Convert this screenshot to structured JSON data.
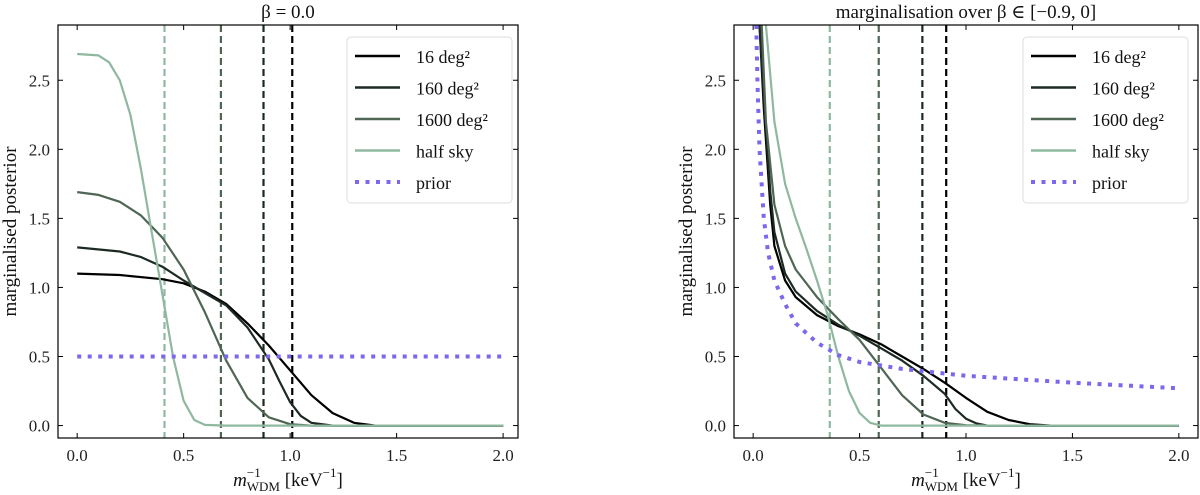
{
  "chart_data": [
    {
      "type": "line",
      "title": "β = 0.0",
      "xlabel": {
        "m": "m",
        "sub": "WDM",
        "sup": "−1",
        "unit": " [keV",
        "unit_sup": "−1",
        "close": "]"
      },
      "ylabel": "marginalised posterior",
      "xlim": [
        -0.09,
        2.07
      ],
      "ylim": [
        -0.09,
        2.9
      ],
      "xticks": [
        0.0,
        0.5,
        1.0,
        1.5,
        2.0
      ],
      "xtick_labels": [
        "0.0",
        "0.5",
        "1.0",
        "1.5",
        "2.0"
      ],
      "yticks": [
        0.0,
        0.5,
        1.0,
        1.5,
        2.0,
        2.5
      ],
      "ytick_labels": [
        "0.0",
        "0.5",
        "1.0",
        "1.5",
        "2.0",
        "2.5"
      ],
      "grid": false,
      "legend_position": "top-right",
      "series": [
        {
          "name": "16 deg²",
          "color": "#000000",
          "style": "solid",
          "x": [
            0,
            0.2,
            0.4,
            0.5,
            0.6,
            0.7,
            0.8,
            0.9,
            1.0,
            1.1,
            1.2,
            1.3,
            1.4,
            2.0
          ],
          "y": [
            1.1,
            1.09,
            1.06,
            1.03,
            0.97,
            0.88,
            0.74,
            0.58,
            0.4,
            0.22,
            0.09,
            0.02,
            0.0,
            0.0
          ]
        },
        {
          "name": "160 deg²",
          "color": "#1c2a22",
          "style": "solid",
          "x": [
            0,
            0.2,
            0.3,
            0.4,
            0.5,
            0.6,
            0.7,
            0.8,
            0.9,
            0.95,
            1.0,
            1.05,
            1.1,
            1.2,
            2.0
          ],
          "y": [
            1.29,
            1.26,
            1.22,
            1.15,
            1.05,
            0.96,
            0.87,
            0.71,
            0.48,
            0.32,
            0.17,
            0.07,
            0.02,
            0.0,
            0.0
          ]
        },
        {
          "name": "1600 deg²",
          "color": "#4f6655",
          "style": "solid",
          "x": [
            0,
            0.1,
            0.2,
            0.3,
            0.4,
            0.5,
            0.6,
            0.7,
            0.8,
            0.9,
            1.0,
            1.1,
            2.0
          ],
          "y": [
            1.69,
            1.67,
            1.62,
            1.52,
            1.36,
            1.13,
            0.82,
            0.47,
            0.2,
            0.06,
            0.01,
            0.0,
            0.0
          ]
        },
        {
          "name": "half sky",
          "color": "#8fb8a0",
          "style": "solid",
          "x": [
            0,
            0.1,
            0.15,
            0.2,
            0.25,
            0.3,
            0.35,
            0.4,
            0.45,
            0.5,
            0.55,
            0.6,
            0.7,
            2.0
          ],
          "y": [
            2.69,
            2.68,
            2.63,
            2.5,
            2.25,
            1.85,
            1.4,
            0.95,
            0.5,
            0.18,
            0.04,
            0.005,
            0.0,
            0.0
          ]
        },
        {
          "name": "prior",
          "color": "#7b68ee",
          "style": "dotted",
          "x": [
            0,
            2.0
          ],
          "y": [
            0.5,
            0.5
          ]
        }
      ],
      "vlines": [
        {
          "x": 0.41,
          "color": "#8fb8a0"
        },
        {
          "x": 0.675,
          "color": "#4f6655"
        },
        {
          "x": 0.875,
          "color": "#1c2a22"
        },
        {
          "x": 1.01,
          "color": "#000000"
        }
      ]
    },
    {
      "type": "line",
      "title": "marginalisation over β ∈ [−0.9, 0]",
      "xlabel": {
        "m": "m",
        "sub": "WDM",
        "sup": "−1",
        "unit": " [keV",
        "unit_sup": "−1",
        "close": "]"
      },
      "ylabel": "marginalised posterior",
      "xlim": [
        -0.09,
        2.09
      ],
      "ylim": [
        -0.09,
        2.9
      ],
      "xticks": [
        0.0,
        0.5,
        1.0,
        1.5,
        2.0
      ],
      "xtick_labels": [
        "0.0",
        "0.5",
        "1.0",
        "1.5",
        "2.0"
      ],
      "yticks": [
        0.0,
        0.5,
        1.0,
        1.5,
        2.0,
        2.5
      ],
      "ytick_labels": [
        "0.0",
        "0.5",
        "1.0",
        "1.5",
        "2.0",
        "2.5"
      ],
      "grid": false,
      "legend_position": "top-right",
      "series": [
        {
          "name": "16 deg²",
          "color": "#000000",
          "style": "solid",
          "x": [
            0.03,
            0.05,
            0.08,
            0.1,
            0.15,
            0.2,
            0.3,
            0.4,
            0.5,
            0.6,
            0.7,
            0.8,
            0.9,
            1.0,
            1.1,
            1.2,
            1.3,
            1.4,
            2.0
          ],
          "y": [
            2.9,
            2.3,
            1.6,
            1.3,
            1.05,
            0.93,
            0.8,
            0.72,
            0.66,
            0.59,
            0.5,
            0.41,
            0.31,
            0.2,
            0.1,
            0.04,
            0.01,
            0.0,
            0.0
          ]
        },
        {
          "name": "160 deg²",
          "color": "#1c2a22",
          "style": "solid",
          "x": [
            0.03,
            0.05,
            0.08,
            0.1,
            0.15,
            0.2,
            0.3,
            0.4,
            0.5,
            0.6,
            0.7,
            0.8,
            0.9,
            0.95,
            1.0,
            1.05,
            1.1,
            2.0
          ],
          "y": [
            2.9,
            2.4,
            1.7,
            1.4,
            1.1,
            0.97,
            0.83,
            0.73,
            0.65,
            0.56,
            0.47,
            0.36,
            0.23,
            0.12,
            0.05,
            0.015,
            0.0,
            0.0
          ]
        },
        {
          "name": "1600 deg²",
          "color": "#4f6655",
          "style": "solid",
          "x": [
            0.04,
            0.06,
            0.1,
            0.15,
            0.2,
            0.3,
            0.4,
            0.5,
            0.6,
            0.7,
            0.8,
            0.9,
            1.0,
            1.1,
            2.0
          ],
          "y": [
            2.9,
            2.2,
            1.6,
            1.3,
            1.13,
            0.93,
            0.77,
            0.62,
            0.42,
            0.22,
            0.08,
            0.02,
            0.003,
            0.0,
            0.0
          ]
        },
        {
          "name": "half sky",
          "color": "#8fb8a0",
          "style": "solid",
          "x": [
            0.06,
            0.1,
            0.15,
            0.2,
            0.25,
            0.3,
            0.35,
            0.4,
            0.45,
            0.5,
            0.55,
            0.6,
            2.0
          ],
          "y": [
            2.9,
            2.2,
            1.75,
            1.5,
            1.28,
            1.05,
            0.8,
            0.5,
            0.25,
            0.09,
            0.02,
            0.0,
            0.0
          ]
        },
        {
          "name": "prior",
          "color": "#7b68ee",
          "style": "dotted",
          "x": [
            0.015,
            0.02,
            0.03,
            0.05,
            0.07,
            0.1,
            0.15,
            0.2,
            0.3,
            0.4,
            0.5,
            0.7,
            1.0,
            1.5,
            2.0
          ],
          "y": [
            2.9,
            2.5,
            2.0,
            1.5,
            1.25,
            1.05,
            0.88,
            0.74,
            0.6,
            0.51,
            0.46,
            0.41,
            0.36,
            0.31,
            0.27
          ]
        }
      ],
      "vlines": [
        {
          "x": 0.36,
          "color": "#8fb8a0"
        },
        {
          "x": 0.59,
          "color": "#4f6655"
        },
        {
          "x": 0.795,
          "color": "#1c2a22"
        },
        {
          "x": 0.907,
          "color": "#000000"
        }
      ]
    }
  ]
}
